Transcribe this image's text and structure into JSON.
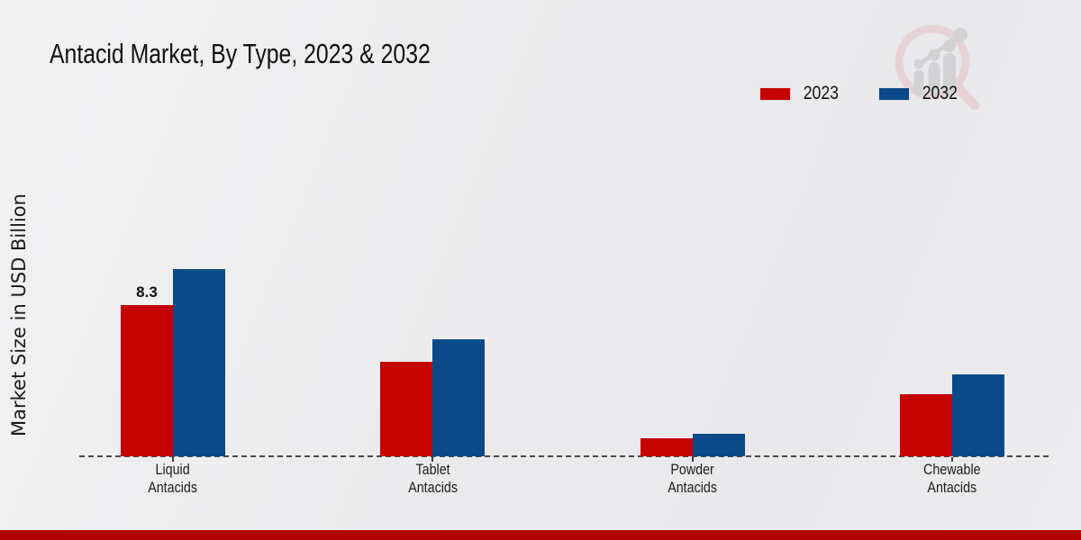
{
  "title": "Antacid Market, By Type, 2023 & 2032",
  "y_axis_label": "Market Size in USD Billion",
  "colors": {
    "series_2023": "#c50202",
    "series_2032": "#0a4a88",
    "bottom_band": "#b00202",
    "baseline": "#4a4a4a"
  },
  "logo_name": "market-research-magnifier-logo",
  "chart_data": {
    "type": "bar",
    "title": "Antacid Market, By Type, 2023 & 2032",
    "xlabel": "",
    "ylabel": "Market Size in USD Billion",
    "categories": [
      "Liquid Antacids",
      "Tablet Antacids",
      "Powder Antacids",
      "Chewable Antacids"
    ],
    "categories_two_line": [
      [
        "Liquid",
        "Antacids"
      ],
      [
        "Tablet",
        "Antacids"
      ],
      [
        "Powder",
        "Antacids"
      ],
      [
        "Chewable",
        "Antacids"
      ]
    ],
    "series": [
      {
        "name": "2023",
        "color": "#c50202",
        "values": [
          8.3,
          5.2,
          1.0,
          3.4
        ]
      },
      {
        "name": "2032",
        "color": "#0a4a88",
        "values": [
          10.3,
          6.4,
          1.25,
          4.5
        ]
      }
    ],
    "annotations": [
      {
        "series_index": 0,
        "category_index": 0,
        "text": "8.3"
      }
    ],
    "ylim": [
      0,
      11.5
    ],
    "grid": false,
    "y_axis_ticks_visible": false,
    "baseline_style": "dashed",
    "legend_position": "top-right"
  }
}
